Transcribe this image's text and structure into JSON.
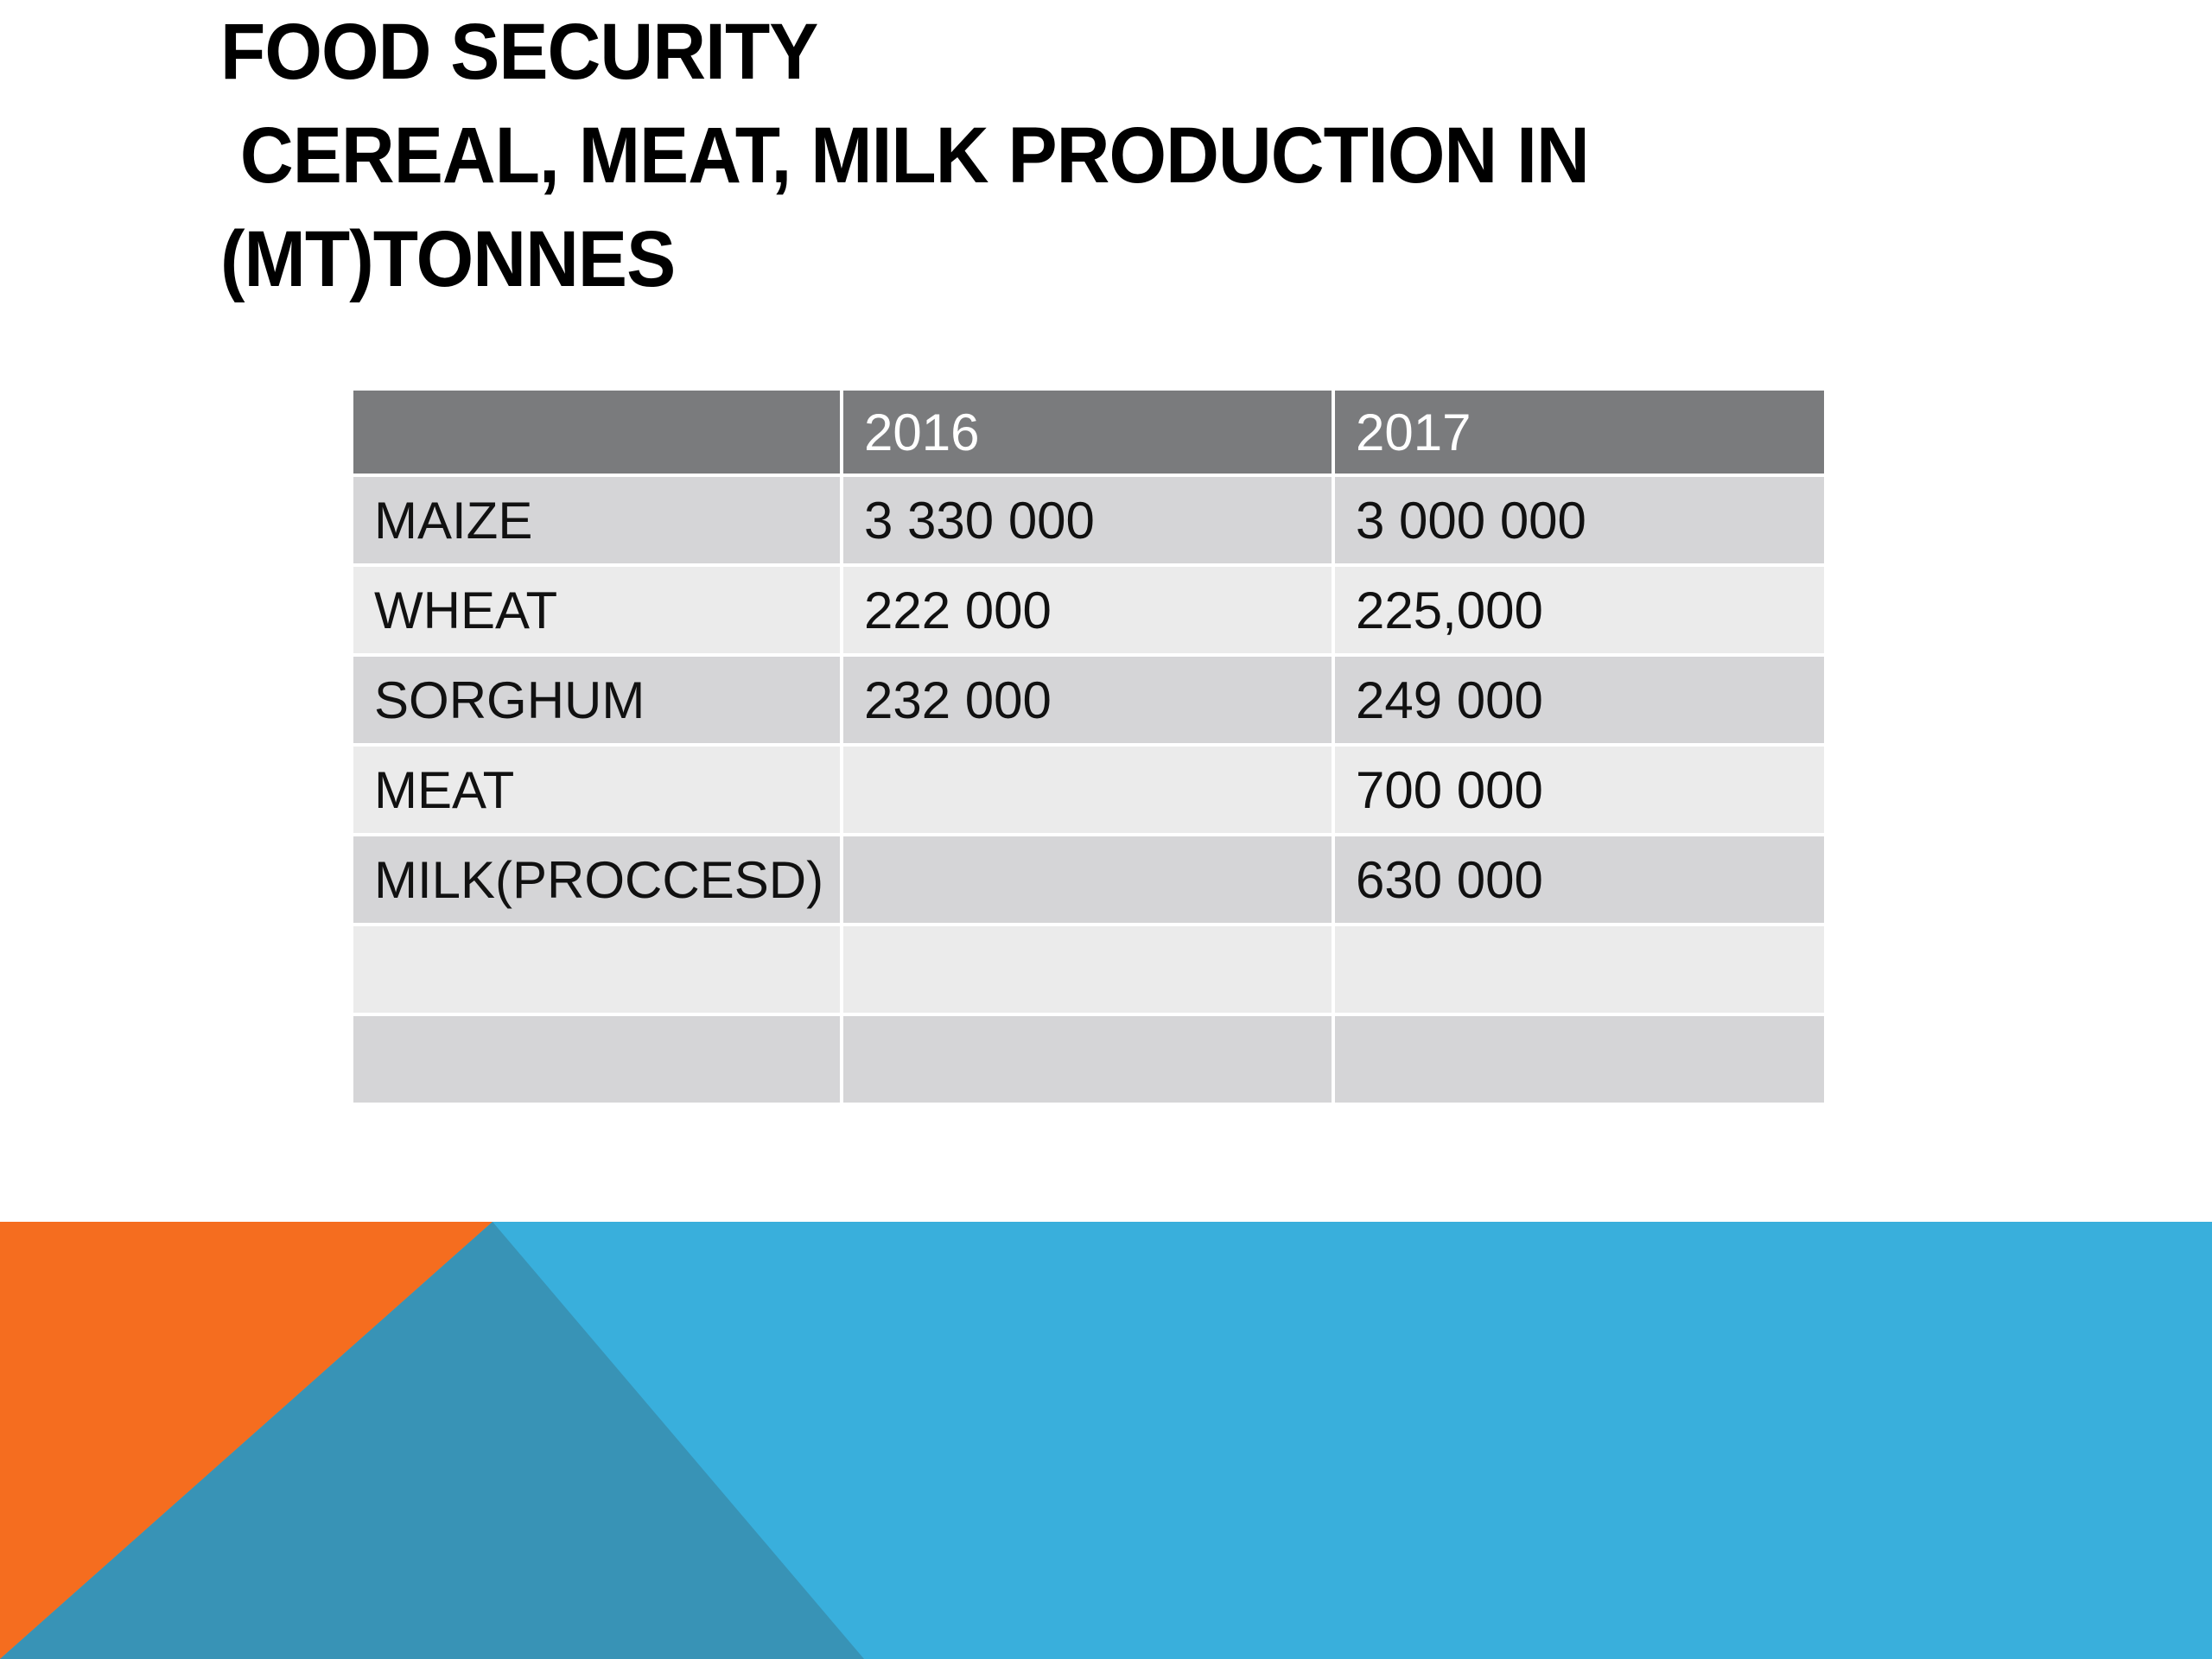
{
  "slide": {
    "title": "FOOD SECURITY\n CEREAL, MEAT, MILK PRODUCTION IN\n(MT)TONNES"
  },
  "table": {
    "headers": [
      "",
      "2016",
      "2017"
    ],
    "rows": [
      [
        "MAIZE",
        "3 330 000",
        "3 000 000"
      ],
      [
        "WHEAT",
        "222 000",
        "225,000"
      ],
      [
        "SORGHUM",
        "232 000",
        "249 000"
      ],
      [
        "MEAT",
        "",
        "700 000"
      ],
      [
        "MILK(PROCCESD)",
        "",
        "630 000"
      ],
      [
        "",
        "",
        ""
      ],
      [
        "",
        "",
        ""
      ]
    ]
  },
  "colors": {
    "header_bg": "#7a7b7d",
    "row_odd": "#d5d5d7",
    "row_even": "#ebebeb",
    "band_blue": "#39afdc",
    "band_teal": "#3893b6",
    "band_orange": "#f56d1f"
  }
}
